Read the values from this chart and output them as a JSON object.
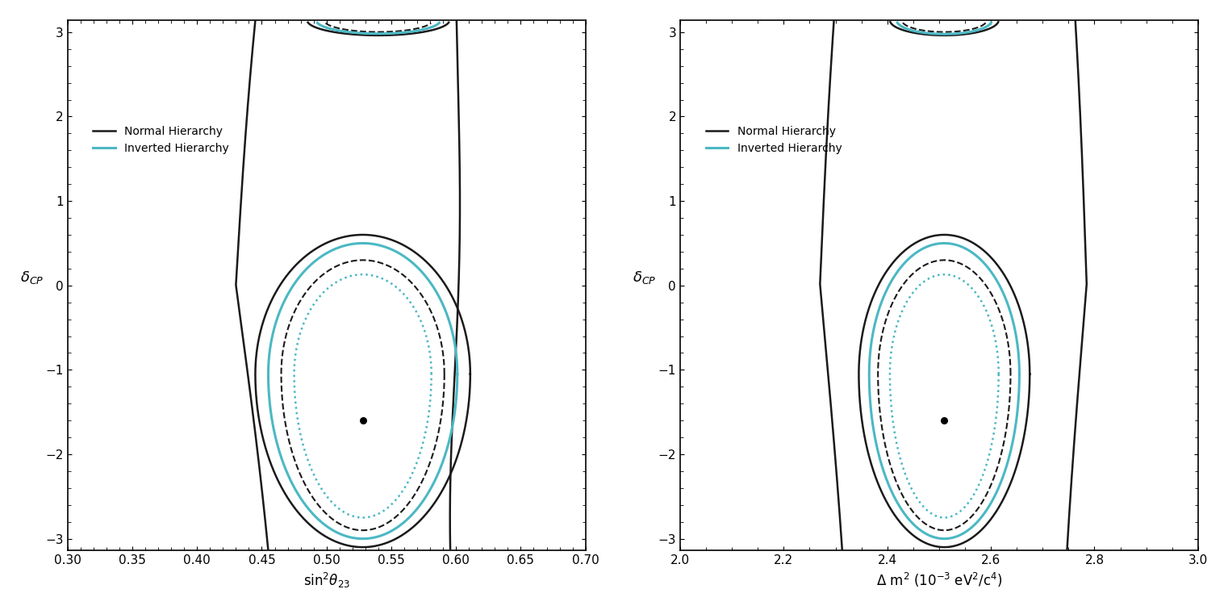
{
  "fig_width": 15.22,
  "fig_height": 7.56,
  "background_color": "#ffffff",
  "left_plot": {
    "xlabel": "sin$^2\\theta_{23}$",
    "ylabel": "$\\delta_{CP}$",
    "xlim": [
      0.3,
      0.7
    ],
    "ylim": [
      -3.14159,
      3.14159
    ],
    "xticks": [
      0.3,
      0.35,
      0.4,
      0.45,
      0.5,
      0.55,
      0.6,
      0.65,
      0.7
    ],
    "yticks": [
      -3,
      -2,
      -1,
      0,
      1,
      2,
      3
    ],
    "best_fit_x": 0.528,
    "best_fit_y": -1.6
  },
  "right_plot": {
    "xlabel": "$\\Delta$ m$^2$ (10$^{-3}$ eV$^2$/c$^4$)",
    "ylabel": "$\\delta_{CP}$",
    "xlim": [
      2.0,
      3.0
    ],
    "ylim": [
      -3.14159,
      3.14159
    ],
    "xticks": [
      2.0,
      2.2,
      2.4,
      2.6,
      2.8,
      3.0
    ],
    "yticks": [
      -3,
      -2,
      -1,
      0,
      1,
      2,
      3
    ],
    "best_fit_x": 2.51,
    "best_fit_y": -1.6
  },
  "normal_color": "#1a1a1a",
  "inverted_color": "#4bb8c4",
  "legend_normal_label": "Normal Hierarchy",
  "legend_inverted_label": "Inverted Hierarchy",
  "pi": 3.14159265358979
}
